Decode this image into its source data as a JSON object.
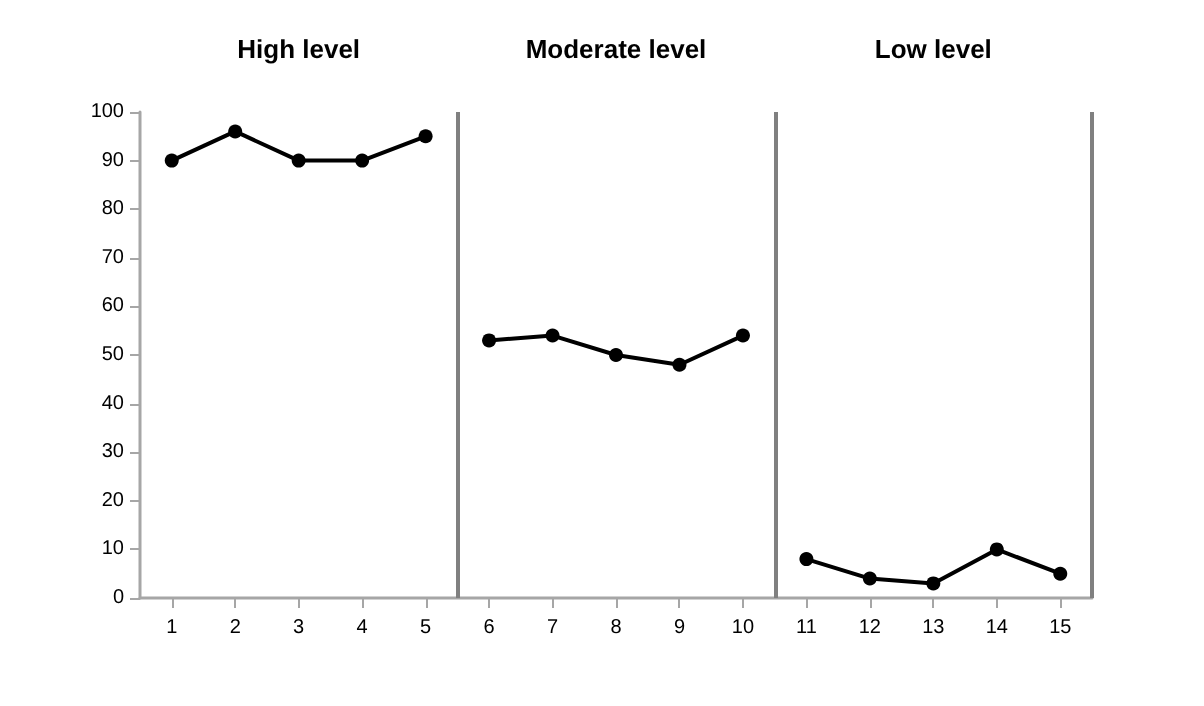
{
  "chart_data": {
    "type": "line",
    "xlim": [
      0.5,
      15.5
    ],
    "xticks": [
      1,
      2,
      3,
      4,
      5,
      6,
      7,
      8,
      9,
      10,
      11,
      12,
      13,
      14,
      15
    ],
    "ylim": [
      0,
      100
    ],
    "yticks": [
      0,
      10,
      20,
      30,
      40,
      50,
      60,
      70,
      80,
      90,
      100
    ],
    "series": [
      {
        "color": "#000000",
        "x": [
          1,
          2,
          3,
          4,
          5
        ],
        "values": [
          90,
          96,
          90,
          90,
          95
        ]
      },
      {
        "color": "#000000",
        "x": [
          6,
          7,
          8,
          9,
          10
        ],
        "values": [
          53,
          54,
          50,
          48,
          54
        ]
      },
      {
        "color": "#000000",
        "x": [
          11,
          12,
          13,
          14,
          15
        ],
        "values": [
          8,
          4,
          3,
          10,
          5
        ]
      }
    ],
    "annotations": [
      "High level",
      "Moderate level",
      "Low level"
    ],
    "ref_lines": [
      {
        "axis": "x",
        "value": 5.5,
        "color": "#808080"
      },
      {
        "axis": "x",
        "value": 10.5,
        "color": "#808080"
      },
      {
        "axis": "x",
        "value": 15.5,
        "color": "#808080"
      }
    ],
    "grid": false,
    "marker": "circle",
    "line_style": "solid"
  }
}
